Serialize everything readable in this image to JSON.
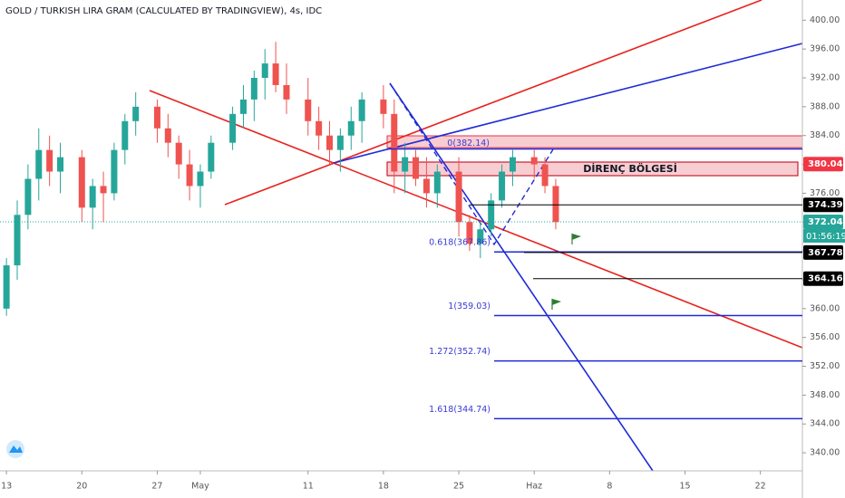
{
  "chart_data": {
    "type": "candlestick",
    "title": "GOLD / TURKISH LIRA GRAM (CALCULATED BY TRADINGVIEW), 4s, IDC",
    "x": [
      0,
      1,
      2,
      3,
      4,
      5,
      7,
      8,
      9,
      10,
      11,
      12,
      14,
      15,
      16,
      17,
      18,
      19,
      21,
      22,
      23,
      24,
      25,
      26,
      28,
      29,
      30,
      31,
      32,
      33,
      35,
      36,
      37,
      38,
      39,
      40,
      42,
      43,
      44,
      45,
      46,
      47,
      49,
      50,
      51
    ],
    "open": [
      360,
      366,
      373,
      378,
      382,
      379,
      381,
      374,
      377,
      376,
      382,
      386,
      388,
      385,
      383,
      380,
      377,
      379,
      383,
      387,
      389,
      392,
      394,
      391,
      389,
      386,
      384,
      382,
      384,
      386,
      389,
      387,
      379,
      381,
      378,
      376,
      379,
      372,
      369,
      371,
      375,
      379,
      381,
      380,
      377
    ],
    "high": [
      367,
      375,
      380,
      385,
      384,
      383,
      382,
      378,
      379,
      383,
      387,
      390,
      389,
      387,
      384,
      382,
      380,
      384,
      388,
      391,
      393,
      396,
      397,
      394,
      392,
      388,
      386,
      385,
      388,
      390,
      391,
      389,
      383,
      382,
      381,
      380,
      381,
      373,
      372,
      376,
      380,
      382,
      382,
      381,
      378
    ],
    "low": [
      359,
      364,
      371,
      375,
      377,
      376,
      372,
      371,
      372,
      375,
      380,
      384,
      383,
      381,
      378,
      375,
      374,
      378,
      382,
      385,
      386,
      389,
      390,
      387,
      384,
      382,
      380,
      379,
      382,
      383,
      385,
      376,
      376,
      377,
      374,
      374,
      370,
      368,
      367,
      370,
      374,
      377,
      378,
      376,
      371
    ],
    "close": [
      366,
      373,
      378,
      382,
      379,
      381,
      374,
      377,
      376,
      382,
      386,
      388,
      385,
      383,
      380,
      377,
      379,
      383,
      387,
      389,
      392,
      394,
      391,
      389,
      386,
      384,
      382,
      384,
      386,
      389,
      387,
      379,
      381,
      378,
      376,
      379,
      372,
      369,
      371,
      375,
      379,
      381,
      380,
      377,
      372
    ],
    "up_color": "#26a69a",
    "down_color": "#ef5350",
    "xlim": [
      -0.6,
      73.9
    ],
    "xticks": [
      {
        "value": 0,
        "label": "13"
      },
      {
        "value": 7,
        "label": "20"
      },
      {
        "value": 14,
        "label": "27"
      },
      {
        "value": 18,
        "label": "May"
      },
      {
        "value": 28,
        "label": "11"
      },
      {
        "value": 35,
        "label": "18"
      },
      {
        "value": 42,
        "label": "25"
      },
      {
        "value": 49,
        "label": "Haz"
      },
      {
        "value": 56,
        "label": "8"
      },
      {
        "value": 63,
        "label": "15"
      },
      {
        "value": 70,
        "label": "22"
      }
    ],
    "ylim": [
      337.5,
      402.8
    ],
    "yticks": [
      {
        "value": 340,
        "label": "340.00"
      },
      {
        "value": 344,
        "label": "344.00"
      },
      {
        "value": 348,
        "label": "348.00"
      },
      {
        "value": 352,
        "label": "352.00"
      },
      {
        "value": 356,
        "label": "356.00"
      },
      {
        "value": 360,
        "label": "360.00"
      },
      {
        "value": 364,
        "label": "364.00"
      },
      {
        "value": 368,
        "label": "368.00"
      },
      {
        "value": 372,
        "label": "372.00"
      },
      {
        "value": 376,
        "label": "376.00"
      },
      {
        "value": 380,
        "label": "380.00"
      },
      {
        "value": 384,
        "label": "384.00"
      },
      {
        "value": 388,
        "label": "388.00"
      },
      {
        "value": 392,
        "label": "392.00"
      },
      {
        "value": 396,
        "label": "396.00"
      },
      {
        "value": 400,
        "label": "400.00"
      }
    ],
    "fib_levels": [
      {
        "value": 382.14,
        "label": "0(382.14)"
      },
      {
        "value": 367.86,
        "label": "0.618(367.86)"
      },
      {
        "value": 359.03,
        "label": "1(359.03)"
      },
      {
        "value": 352.74,
        "label": "1.272(352.74)"
      },
      {
        "value": 344.74,
        "label": "1.618(344.74)"
      }
    ],
    "price_tags": [
      {
        "value": 380.04,
        "color": "#f23645"
      },
      {
        "value": 374.39,
        "color": "#000000"
      },
      {
        "value": 372.04,
        "color": "#26a69a"
      },
      {
        "value": 367.78,
        "color": "#000000"
      },
      {
        "value": 364.16,
        "color": "#000000"
      }
    ],
    "countdown": "01:56:19",
    "zone_label": "DİRENÇ BÖLGESİ"
  }
}
